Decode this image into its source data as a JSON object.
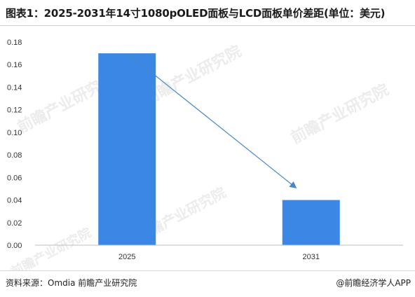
{
  "header": {
    "title": "图表1：2025-2031年14寸1080pOLED面板与LCD面板单价差距(单位：美元)"
  },
  "footer": {
    "source": "资料来源：Omdia 前瞻产业研究院",
    "credit": "@前瞻经济学人APP"
  },
  "watermark": {
    "text": "前瞻产业研究院"
  },
  "colors": {
    "bar": "#3a87e6",
    "arrow": "#4a86c8",
    "axis": "#bfbfbf"
  },
  "chart_data": {
    "type": "bar",
    "categories": [
      "2025",
      "2031"
    ],
    "values": [
      0.17,
      0.04
    ],
    "ylim": [
      0,
      0.18
    ],
    "yticks": [
      "0.00",
      "0.02",
      "0.04",
      "0.06",
      "0.08",
      "0.10",
      "0.12",
      "0.14",
      "0.16",
      "0.18"
    ],
    "grid": false,
    "annotations": [
      {
        "type": "arrow",
        "from_category": "2025",
        "from_value": 0.17,
        "to_category": "2031",
        "to_value": 0.056
      }
    ]
  }
}
